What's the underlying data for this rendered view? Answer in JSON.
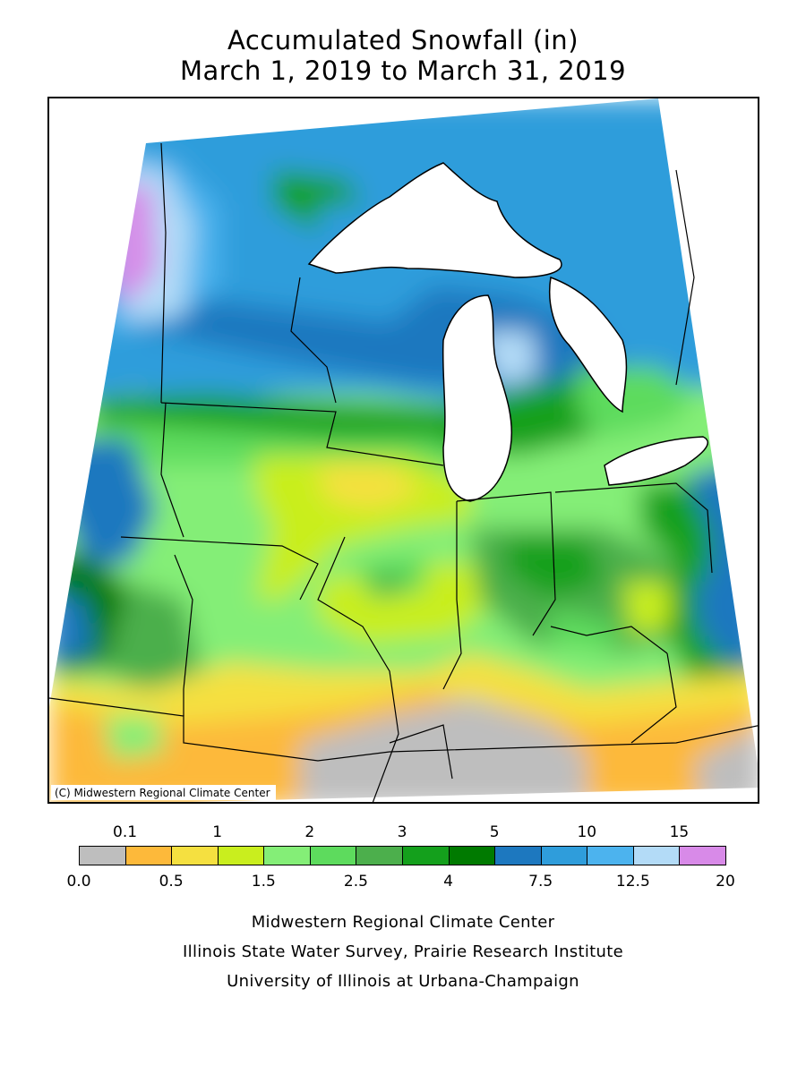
{
  "title": {
    "line1": "Accumulated Snowfall (in)",
    "line2": "March 1, 2019 to March 31, 2019"
  },
  "map": {
    "copyright": "(C) Midwestern Regional Climate Center"
  },
  "legend": {
    "bins": [
      {
        "from": "0.0",
        "to": "0.1",
        "color": "#bebebe"
      },
      {
        "from": "0.1",
        "to": "0.5",
        "color": "#fdb93a"
      },
      {
        "from": "0.5",
        "to": "1",
        "color": "#f5e040"
      },
      {
        "from": "1",
        "to": "1.5",
        "color": "#c9ee1e"
      },
      {
        "from": "1.5",
        "to": "2",
        "color": "#84ee77"
      },
      {
        "from": "2",
        "to": "2.5",
        "color": "#5ddb5d"
      },
      {
        "from": "2.5",
        "to": "3",
        "color": "#4caf4c"
      },
      {
        "from": "3",
        "to": "4",
        "color": "#14a01c"
      },
      {
        "from": "4",
        "to": "5",
        "color": "#007a00"
      },
      {
        "from": "5",
        "to": "7.5",
        "color": "#1d78bf"
      },
      {
        "from": "7.5",
        "to": "10",
        "color": "#2f9ddb"
      },
      {
        "from": "10",
        "to": "12.5",
        "color": "#4cb3ee"
      },
      {
        "from": "12.5",
        "to": "15",
        "color": "#b3dbf7"
      },
      {
        "from": "15",
        "to": "20",
        "color": "#d88ae8"
      }
    ],
    "top_labels": [
      "0.1",
      "1",
      "2",
      "3",
      "5",
      "10",
      "15"
    ],
    "bottom_labels": [
      "0.0",
      "0.5",
      "1.5",
      "2.5",
      "4",
      "7.5",
      "12.5",
      "20"
    ]
  },
  "footer": {
    "line1": "Midwestern Regional Climate Center",
    "line2": "Illinois State Water Survey, Prairie Research Institute",
    "line3": "University of Illinois at Urbana-Champaign"
  }
}
